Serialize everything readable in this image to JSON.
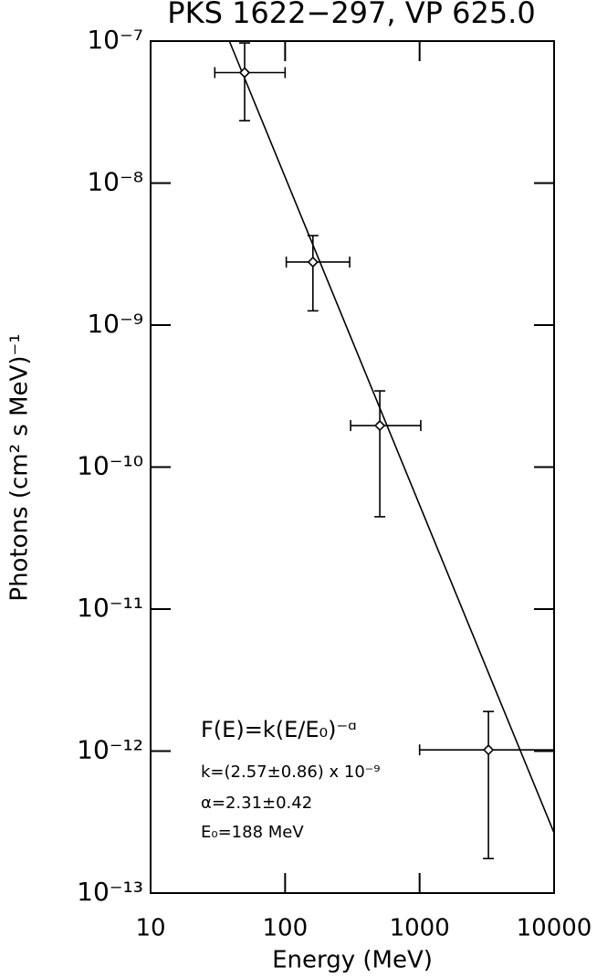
{
  "chart_data": {
    "type": "scatter",
    "title": "PKS 1622−297, VP 625.0",
    "x_label": "Energy (MeV)",
    "y_label": "Photons (cm² s MeV)⁻¹",
    "x": [
      50,
      161,
      506,
      3250
    ],
    "values": [
      6e-08,
      2.78e-09,
      1.96e-10,
      1.02e-12
    ],
    "x_low": [
      30,
      102,
      307,
      1000
    ],
    "x_high": [
      100,
      302,
      1020,
      10000
    ],
    "y_low": [
      2.75e-08,
      1.26e-09,
      4.47e-11,
      1.75e-13
    ],
    "y_high": [
      9.7e-08,
      4.27e-09,
      3.44e-10,
      1.9e-12
    ],
    "fit": {
      "x": [
        38.5,
        10000
      ],
      "y": [
        1e-07,
        2.65e-13
      ]
    },
    "xlim": [
      10,
      10000
    ],
    "ylim": [
      1e-13,
      1e-07
    ],
    "xticks": [
      10,
      100,
      1000,
      10000
    ],
    "yticks": [
      {
        "value": 1e-13,
        "label": "10⁻¹³"
      },
      {
        "value": 1e-12,
        "label": "10⁻¹²"
      },
      {
        "value": 1e-11,
        "label": "10⁻¹¹"
      },
      {
        "value": 1e-10,
        "label": "10⁻¹⁰"
      },
      {
        "value": 1e-09,
        "label": "10⁻⁹"
      },
      {
        "value": 1e-08,
        "label": "10⁻⁸"
      },
      {
        "value": 1e-07,
        "label": "10⁻⁷"
      }
    ],
    "log_x": true,
    "log_y": true,
    "color": "#000000",
    "annotations": [
      "F(E)=k(E/E₀)⁻ᵅ",
      "k=(2.57±0.86) x 10⁻⁹",
      "α=2.31±0.42",
      "E₀=188 MeV"
    ]
  }
}
